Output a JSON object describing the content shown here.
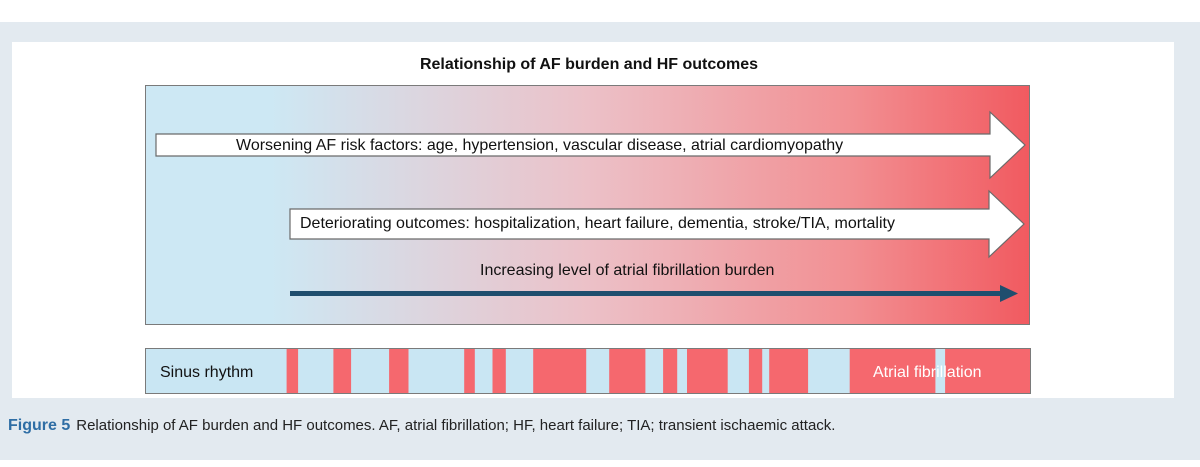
{
  "title": "Relationship of AF burden and HF outcomes",
  "arrows": {
    "risk_factors": "Worsening AF risk factors: age, hypertension, vascular disease, atrial cardiomyopathy",
    "outcomes": "Deteriorating outcomes: hospitalization, heart failure, dementia, stroke/TIA, mortality",
    "burden": "Increasing level of atrial fibrillation burden"
  },
  "rhythm": {
    "sinus_label": "Sinus rhythm",
    "af_label": "Atrial fibrillation",
    "af_episodes": [
      [
        0.159,
        0.172
      ],
      [
        0.212,
        0.232
      ],
      [
        0.275,
        0.297
      ],
      [
        0.36,
        0.372
      ],
      [
        0.392,
        0.407
      ],
      [
        0.438,
        0.498
      ],
      [
        0.524,
        0.565
      ],
      [
        0.585,
        0.601
      ],
      [
        0.612,
        0.658
      ],
      [
        0.682,
        0.697
      ],
      [
        0.705,
        0.749
      ],
      [
        0.796,
        0.893
      ],
      [
        0.904,
        1.0
      ]
    ]
  },
  "caption": {
    "number": "Figure 5",
    "text": "Relationship of AF burden and HF outcomes. AF, atrial fibrillation; HF, heart failure; TIA; transient ischaemic attack."
  },
  "colors": {
    "sinus": "#c9e6f3",
    "af": "#f5686e",
    "burden_arrow": "#1f4e6e",
    "caption_accent": "#2f6ea5"
  }
}
